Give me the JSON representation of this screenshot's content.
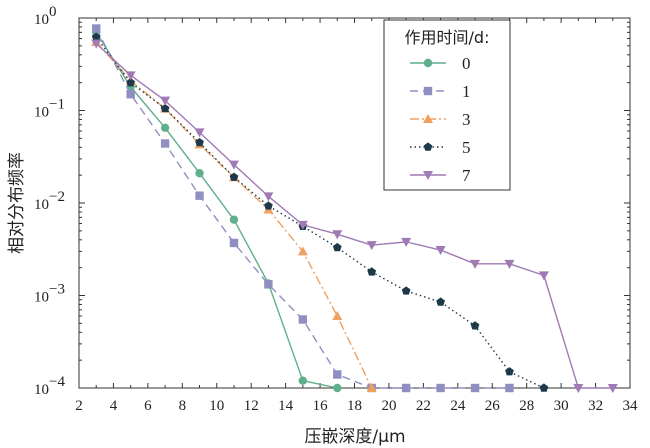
{
  "chart_data": {
    "type": "line",
    "title": "",
    "xlabel": "压嵌深度/μm",
    "ylabel": "相对分布频率",
    "yscale": "log",
    "xlim": [
      2,
      34
    ],
    "ylim": [
      0.0001,
      1
    ],
    "xticks": [
      2,
      4,
      6,
      8,
      10,
      12,
      14,
      16,
      18,
      20,
      22,
      24,
      26,
      28,
      30,
      32,
      34
    ],
    "yticks": [
      {
        "value": 1,
        "base": "10",
        "exp": "0"
      },
      {
        "value": 0.1,
        "base": "10",
        "exp": "−1"
      },
      {
        "value": 0.01,
        "base": "10",
        "exp": "−2"
      },
      {
        "value": 0.001,
        "base": "10",
        "exp": "−3"
      },
      {
        "value": 0.0001,
        "base": "10",
        "exp": "−4"
      }
    ],
    "legend_title": "作用时间/d:",
    "legend_position": "top-right",
    "series": [
      {
        "name": "0",
        "color": "#5fae8c",
        "dash": "",
        "marker": "circle",
        "x": [
          3,
          5,
          7,
          9,
          11,
          13,
          15,
          17
        ],
        "y": [
          0.7,
          0.18,
          0.065,
          0.021,
          0.0066,
          0.00135,
          0.00012,
          0.0001
        ]
      },
      {
        "name": "1",
        "color": "#8f8fc2",
        "dash": "8,5",
        "marker": "square",
        "x": [
          3,
          5,
          7,
          9,
          11,
          13,
          15,
          17,
          19,
          21,
          23,
          25,
          27
        ],
        "y": [
          0.77,
          0.15,
          0.044,
          0.012,
          0.0037,
          0.00132,
          0.00055,
          0.00014,
          0.0001,
          0.0001,
          0.0001,
          0.0001,
          0.0001
        ]
      },
      {
        "name": "3",
        "color": "#f0a060",
        "dash": "9,3,2,3",
        "marker": "triangle-up",
        "x": [
          3,
          5,
          7,
          9,
          11,
          13,
          15,
          17,
          19
        ],
        "y": [
          0.55,
          0.21,
          0.105,
          0.043,
          0.019,
          0.0085,
          0.003,
          0.0006,
          0.0001
        ]
      },
      {
        "name": "5",
        "color": "#1e3a4a",
        "dash": "1.5,3",
        "marker": "pentagon",
        "x": [
          3,
          5,
          7,
          9,
          11,
          13,
          15,
          17,
          19,
          21,
          23,
          25,
          27,
          29
        ],
        "y": [
          0.62,
          0.2,
          0.105,
          0.045,
          0.019,
          0.0093,
          0.0056,
          0.0033,
          0.0018,
          0.00112,
          0.00085,
          0.00047,
          0.00015,
          0.0001
        ]
      },
      {
        "name": "7",
        "color": "#a07ab5",
        "dash": "",
        "marker": "triangle-down",
        "x": [
          3,
          5,
          7,
          9,
          11,
          13,
          15,
          17,
          19,
          21,
          23,
          25,
          27,
          29,
          31,
          33
        ],
        "y": [
          0.53,
          0.24,
          0.128,
          0.058,
          0.026,
          0.0118,
          0.0058,
          0.0046,
          0.0035,
          0.0038,
          0.0031,
          0.0022,
          0.0022,
          0.00165,
          0.0001,
          0.0001
        ]
      }
    ]
  }
}
